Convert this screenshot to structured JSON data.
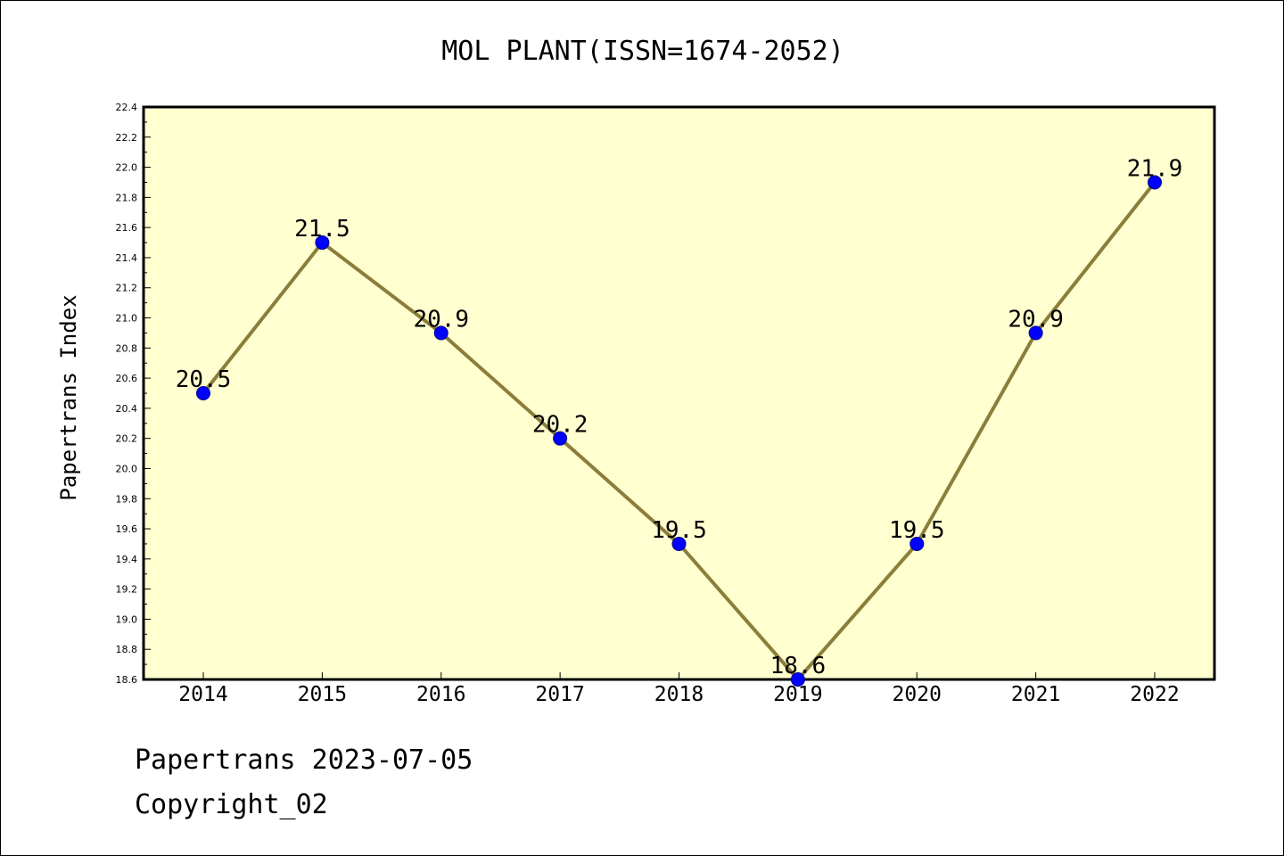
{
  "chart_data": {
    "type": "line",
    "title": "MOL PLANT(ISSN=1674-2052)",
    "xlabel": "",
    "ylabel": "Papertrans Index",
    "categories": [
      "2014",
      "2015",
      "2016",
      "2017",
      "2018",
      "2019",
      "2020",
      "2021",
      "2022"
    ],
    "values": [
      20.5,
      21.5,
      20.9,
      20.2,
      19.5,
      18.6,
      19.5,
      20.9,
      21.9
    ],
    "data_labels": [
      "20.5",
      "21.5",
      "20.9",
      "20.2",
      "19.5",
      "18.6",
      "19.5",
      "20.9",
      "21.9"
    ],
    "ylim": [
      18.6,
      22.4
    ],
    "yticks": [
      "18.6",
      "18.8",
      "19.0",
      "19.2",
      "19.4",
      "19.6",
      "19.8",
      "20.0",
      "20.2",
      "20.4",
      "20.6",
      "20.8",
      "21.0",
      "21.2",
      "21.4",
      "21.6",
      "21.8",
      "22.0",
      "22.2",
      "22.4"
    ],
    "grid": false,
    "legend": "none",
    "colors": {
      "plot_background": "#FFFFD0",
      "line": "#8B7D3A",
      "marker": "#0000FF",
      "marker_edge": "#00008B"
    }
  },
  "footer": {
    "date_line": "Papertrans 2023-07-05",
    "copyright_line": "Copyright_02"
  }
}
